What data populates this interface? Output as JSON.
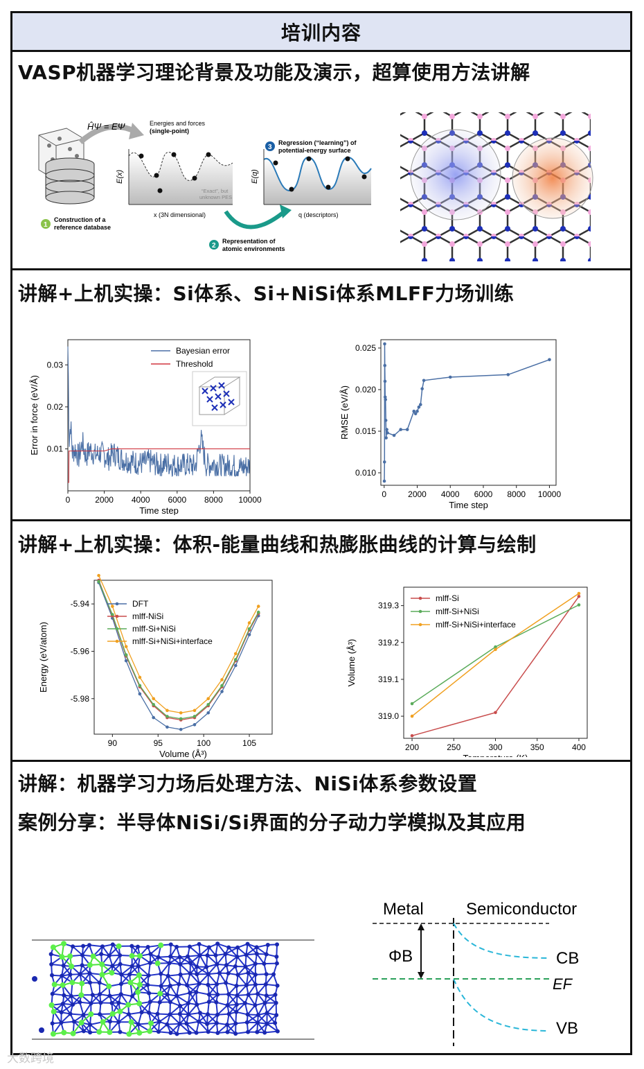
{
  "header": {
    "title": "培训内容"
  },
  "sections": [
    {
      "title": "VASP机器学习理论背景及功能及演示，超算使用方法讲解"
    },
    {
      "title": "讲解+上机实操：Si体系、Si+NiSi体系MLFF力场训练"
    },
    {
      "title": "讲解+上机实操：体积-能量曲线和热膨胀曲线的计算与绘制"
    },
    {
      "title": "讲解：机器学习力场后处理方法、NiSi体系参数设置",
      "subtitle": "案例分享：半导体NiSi/Si界面的分子动力学模拟及其应用"
    }
  ],
  "diagram1": {
    "equation": "ĤΨ = EΨ",
    "energies_label_1": "Energies and forces",
    "energies_label_2": "(single-point)",
    "step1_num": "1",
    "step1_line1": "Construction of a",
    "step1_line2": "reference database",
    "step2_num": "2",
    "step2_line1": "Representation of",
    "step2_line2": "atomic environments",
    "step3_num": "3",
    "step3_line1": "Regression (“learning”) of",
    "step3_line2": "potential-energy surface",
    "ex_label": "E(x)",
    "ex_axis": "x (3N dimensional)",
    "exact_1": "“Exact”, but",
    "exact_2": "unknown PES",
    "eq_label": "E(q)",
    "eq_axis": "q (descriptors)"
  },
  "band_diagram": {
    "metal": "Metal",
    "semiconductor": "Semiconductor",
    "phi": "ΦB",
    "cb": "CB",
    "vb": "VB",
    "ef": "EF"
  },
  "watermark": "大数跨境",
  "chart_data": [
    {
      "type": "line",
      "xlabel": "Time step",
      "ylabel": "Error in force (eV/Å)",
      "xlim": [
        0,
        10000
      ],
      "ylim": [
        0,
        0.036
      ],
      "xticks": [
        0,
        2000,
        4000,
        6000,
        8000,
        10000
      ],
      "yticks": [
        0.01,
        0.02,
        0.03
      ],
      "series": [
        {
          "name": "Bayesian error",
          "color": "#4a6fa5",
          "x": [
            0,
            80,
            150,
            250,
            400,
            600,
            800,
            1000,
            1200,
            1500,
            1800,
            2000,
            2200,
            2500,
            3000,
            3500,
            4000,
            4500,
            5000,
            5500,
            6000,
            6500,
            7000,
            7300,
            7600,
            8000,
            8500,
            9000,
            9500,
            10000
          ],
          "y": [
            0.0345,
            0.012,
            0.016,
            0.009,
            0.01,
            0.008,
            0.0115,
            0.008,
            0.01,
            0.0085,
            0.009,
            0.0085,
            0.0075,
            0.009,
            0.0075,
            0.007,
            0.0065,
            0.007,
            0.006,
            0.0065,
            0.006,
            0.0062,
            0.0058,
            0.0125,
            0.006,
            0.0065,
            0.0058,
            0.006,
            0.0055,
            0.006
          ]
        },
        {
          "name": "Threshold",
          "color": "#d0353f",
          "x": [
            0,
            50,
            60,
            1000,
            1500,
            2000,
            2400,
            10000
          ],
          "y": [
            0.002,
            0.002,
            0.0095,
            0.0095,
            0.0095,
            0.0095,
            0.01,
            0.01
          ]
        }
      ]
    },
    {
      "type": "line",
      "xlabel": "Time step",
      "ylabel": "RMSE (eV/Å)",
      "xlim": [
        -200,
        10400
      ],
      "ylim": [
        0.0085,
        0.026
      ],
      "xticks": [
        0,
        2000,
        4000,
        6000,
        8000,
        10000
      ],
      "yticks": [
        0.01,
        0.015,
        0.02,
        0.025
      ],
      "series": [
        {
          "name": "RMSE",
          "color": "#4a6fa5",
          "x": [
            10,
            20,
            30,
            40,
            50,
            60,
            80,
            100,
            120,
            160,
            200,
            600,
            1000,
            1400,
            1800,
            1900,
            2000,
            2100,
            2200,
            2300,
            2400,
            4000,
            7500,
            10000
          ],
          "y": [
            0.009,
            0.0113,
            0.0255,
            0.0229,
            0.021,
            0.0191,
            0.0188,
            0.0163,
            0.0142,
            0.0152,
            0.0148,
            0.0145,
            0.0152,
            0.0152,
            0.0174,
            0.0171,
            0.0174,
            0.0179,
            0.0182,
            0.0201,
            0.0211,
            0.0215,
            0.0218,
            0.0236
          ]
        }
      ]
    },
    {
      "type": "line",
      "xlabel": "Volume (Å³)",
      "ylabel": "Energy (eV/atom)",
      "xlim": [
        88,
        107.5
      ],
      "ylim": [
        -5.995,
        -5.93
      ],
      "xticks": [
        90,
        95,
        100,
        105
      ],
      "yticks": [
        -5.94,
        -5.96,
        -5.98
      ],
      "series": [
        {
          "name": "DFT",
          "color": "#4a6fa5",
          "x": [
            88.5,
            90,
            91.5,
            93,
            94.5,
            96,
            97.5,
            99,
            100.5,
            102,
            103.5,
            105,
            106
          ],
          "y": [
            -5.931,
            -5.946,
            -5.964,
            -5.978,
            -5.988,
            -5.992,
            -5.993,
            -5.991,
            -5.986,
            -5.977,
            -5.966,
            -5.953,
            -5.945
          ]
        },
        {
          "name": "mlff-NiSi",
          "color": "#c84c4c",
          "x": [
            88.5,
            90,
            91.5,
            93,
            94.5,
            96,
            97.5,
            99,
            100.5,
            102,
            103.5,
            105,
            106
          ],
          "y": [
            -5.93,
            -5.945,
            -5.962,
            -5.975,
            -5.983,
            -5.988,
            -5.989,
            -5.988,
            -5.983,
            -5.975,
            -5.964,
            -5.951,
            -5.944
          ]
        },
        {
          "name": "mlff-Si+NiSi",
          "color": "#5aab5a",
          "x": [
            88.5,
            90,
            91.5,
            93,
            94.5,
            96,
            97.5,
            99,
            100.5,
            102,
            103.5,
            105,
            106
          ],
          "y": [
            -5.9305,
            -5.9445,
            -5.9615,
            -5.9745,
            -5.9825,
            -5.9875,
            -5.9885,
            -5.9875,
            -5.9825,
            -5.9745,
            -5.9635,
            -5.9505,
            -5.9435
          ]
        },
        {
          "name": "mlff-Si+NiSi+interface",
          "color": "#f0a020",
          "x": [
            88.5,
            90,
            91.5,
            93,
            94.5,
            96,
            97.5,
            99,
            100.5,
            102,
            103.5,
            105,
            106
          ],
          "y": [
            -5.928,
            -5.941,
            -5.958,
            -5.971,
            -5.98,
            -5.985,
            -5.986,
            -5.985,
            -5.98,
            -5.972,
            -5.961,
            -5.948,
            -5.941
          ]
        }
      ]
    },
    {
      "type": "line",
      "xlabel": "Temperature (K)",
      "ylabel": "Volume (Å³)",
      "xlim": [
        190,
        410
      ],
      "ylim": [
        318.94,
        319.35
      ],
      "xticks": [
        200,
        250,
        300,
        350,
        400
      ],
      "yticks": [
        319.0,
        319.1,
        319.2,
        319.3
      ],
      "series": [
        {
          "name": "mlff-Si",
          "color": "#c84c4c",
          "x": [
            200,
            300,
            400
          ],
          "y": [
            318.947,
            319.01,
            319.325
          ]
        },
        {
          "name": "mlff-Si+NiSi",
          "color": "#5aab5a",
          "x": [
            200,
            300,
            400
          ],
          "y": [
            319.034,
            319.188,
            319.302
          ]
        },
        {
          "name": "mlff-Si+NiSi+interface",
          "color": "#f0a020",
          "x": [
            200,
            300,
            400
          ],
          "y": [
            319.0,
            319.181,
            319.333
          ]
        }
      ]
    }
  ]
}
